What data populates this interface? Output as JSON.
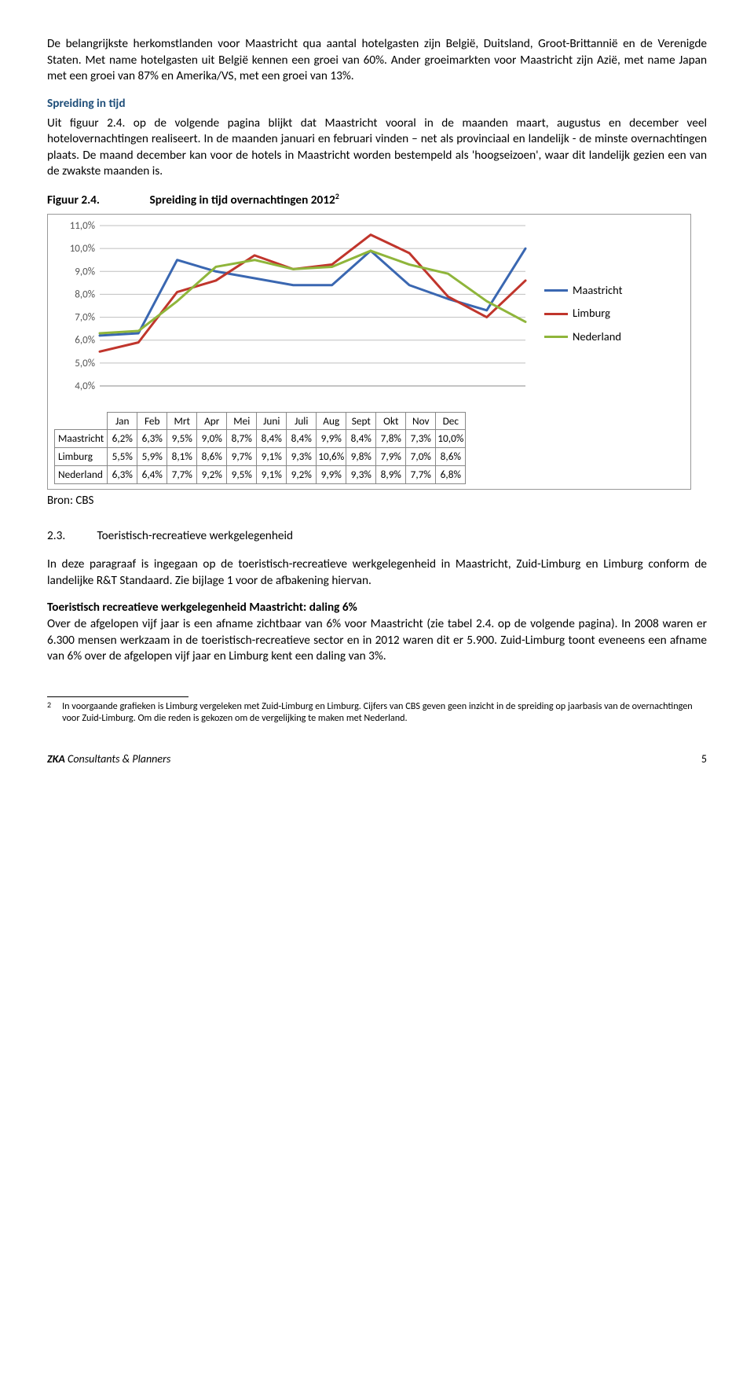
{
  "intro": {
    "p1": "De belangrijkste herkomstlanden voor Maastricht qua aantal hotelgasten zijn België, Duitsland, Groot-Brittannië en de Verenigde Staten. Met name hotelgasten uit België kennen een groei van 60%. Ander groeimarkten voor Maastricht zijn Azië, met name Japan met een groei van 87% en Amerika/VS, met een groei van 13%.",
    "h1": "Spreiding in tijd",
    "p2": "Uit figuur 2.4. op de volgende pagina blijkt dat Maastricht vooral in de maanden maart, augustus en december veel hotelovernachtingen realiseert. In de maanden januari en februari vinden – net als provinciaal en landelijk - de minste overnachtingen plaats. De maand december kan voor de hotels in Maastricht worden bestempeld als 'hoogseizoen', waar dit landelijk gezien een van de zwakste maanden is."
  },
  "figure": {
    "label": "Figuur 2.4.",
    "title": "Spreiding in tijd overnachtingen 2012",
    "title_sup": "2",
    "source": "Bron: CBS",
    "chart": {
      "type": "line",
      "categories": [
        "Jan",
        "Feb",
        "Mrt",
        "Apr",
        "Mei",
        "Juni",
        "Juli",
        "Aug",
        "Sept",
        "Okt",
        "Nov",
        "Dec"
      ],
      "y_ticks": [
        "4,0%",
        "5,0%",
        "6,0%",
        "7,0%",
        "8,0%",
        "9,0%",
        "10,0%",
        "11,0%"
      ],
      "y_min": 4.0,
      "y_max": 11.0,
      "grid_color": "#bfbfbf",
      "axis_color": "#898989",
      "colors": {
        "Maastricht": "#3a67b1",
        "Limburg": "#c0352c",
        "Nederland": "#8fb53b"
      },
      "line_width": 3,
      "series": [
        {
          "name": "Maastricht",
          "values": [
            6.2,
            6.3,
            9.5,
            9.0,
            8.7,
            8.4,
            8.4,
            9.9,
            8.4,
            7.8,
            7.3,
            10.0
          ],
          "display": [
            "6,2%",
            "6,3%",
            "9,5%",
            "9,0%",
            "8,7%",
            "8,4%",
            "8,4%",
            "9,9%",
            "8,4%",
            "7,8%",
            "7,3%",
            "10,0%"
          ]
        },
        {
          "name": "Limburg",
          "values": [
            5.5,
            5.9,
            8.1,
            8.6,
            9.7,
            9.1,
            9.3,
            10.6,
            9.8,
            7.9,
            7.0,
            8.6
          ],
          "display": [
            "5,5%",
            "5,9%",
            "8,1%",
            "8,6%",
            "9,7%",
            "9,1%",
            "9,3%",
            "10,6%",
            "9,8%",
            "7,9%",
            "7,0%",
            "8,6%"
          ]
        },
        {
          "name": "Nederland",
          "values": [
            6.3,
            6.4,
            7.7,
            9.2,
            9.5,
            9.1,
            9.2,
            9.9,
            9.3,
            8.9,
            7.7,
            6.8
          ],
          "display": [
            "6,3%",
            "6,4%",
            "7,7%",
            "9,2%",
            "9,5%",
            "9,1%",
            "9,2%",
            "9,9%",
            "9,3%",
            "8,9%",
            "7,7%",
            "6,8%"
          ]
        }
      ]
    }
  },
  "section23": {
    "num": "2.3.",
    "title": "Toeristisch-recreatieve werkgelegenheid",
    "p1": "In deze paragraaf is ingegaan op de toeristisch-recreatieve werkgelegenheid in Maastricht, Zuid-Limburg en Limburg conform de landelijke R&T Standaard. Zie bijlage 1 voor de afbakening hiervan.",
    "h2": "Toeristisch recreatieve werkgelegenheid Maastricht: daling 6%",
    "p2": "Over de afgelopen vijf jaar is een afname zichtbaar van 6% voor Maastricht (zie tabel 2.4. op de volgende pagina). In 2008 waren er 6.300 mensen werkzaam in de toeristisch-recreatieve sector en in 2012 waren dit er 5.900. Zuid-Limburg toont eveneens een afname van 6% over de afgelopen vijf jaar en Limburg kent een daling van 3%."
  },
  "footnote": {
    "num": "2",
    "text": "In voorgaande grafieken is Limburg vergeleken met Zuid-Limburg en Limburg. Cijfers van CBS geven geen inzicht in de spreiding op jaarbasis van de overnachtingen voor Zuid-Limburg. Om die reden is gekozen om de vergelijking te maken met Nederland."
  },
  "footer": {
    "left_bold": "ZKA",
    "left_rest": " Consultants & Planners",
    "page_no": "5"
  }
}
